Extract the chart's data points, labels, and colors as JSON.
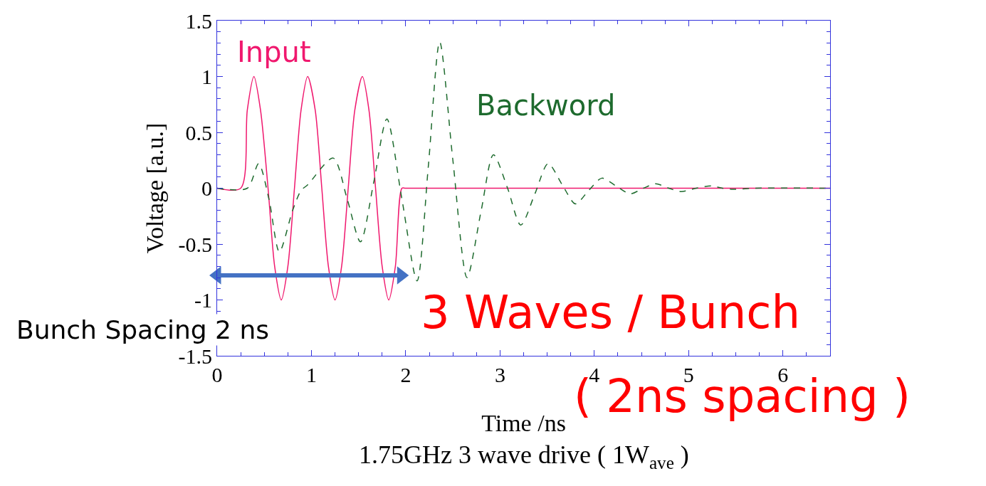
{
  "chart_data": {
    "type": "line",
    "xlabel": "Time /ns",
    "ylabel": "Voltage [a.u.]",
    "xlim": [
      0,
      6.5
    ],
    "ylim": [
      -1.5,
      1.5
    ],
    "xticks": [
      0,
      1,
      2,
      3,
      4,
      5,
      6
    ],
    "yticks": [
      -1.5,
      -1,
      -0.5,
      0,
      0.5,
      1,
      1.5
    ],
    "legend": false,
    "marker": "none",
    "series": [
      {
        "name": "Input",
        "color": "#f0186e",
        "line_style": "solid",
        "x": [
          0,
          0.25,
          0.32,
          0.39,
          0.46,
          0.54,
          0.61,
          0.68,
          0.75,
          0.82,
          0.89,
          0.96,
          1.04,
          1.11,
          1.18,
          1.25,
          1.32,
          1.39,
          1.46,
          1.54,
          1.61,
          1.68,
          1.75,
          1.82,
          1.89,
          1.96,
          2.0,
          6.5
        ],
        "values": [
          0,
          0,
          0.7,
          1,
          0.7,
          0,
          -0.7,
          -1,
          -0.7,
          0,
          0.7,
          1,
          0.7,
          0,
          -0.7,
          -1,
          -0.7,
          0,
          0.7,
          1,
          0.7,
          0,
          -0.7,
          -1,
          -0.7,
          0,
          0,
          0
        ]
      },
      {
        "name": "Backword",
        "color": "#1e6b2e",
        "line_style": "dashed",
        "x": [
          0,
          0.32,
          0.44,
          0.55,
          0.66,
          0.8,
          0.89,
          0.96,
          1.23,
          1.38,
          1.52,
          1.66,
          1.8,
          1.96,
          2.12,
          2.24,
          2.36,
          2.5,
          2.65,
          2.8,
          2.93,
          3.08,
          3.22,
          3.37,
          3.51,
          3.66,
          3.8,
          3.94,
          4.08,
          4.23,
          4.38,
          4.52,
          4.65,
          4.79,
          4.92,
          5.08,
          5.24,
          5.36,
          5.47,
          5.7,
          6.5
        ],
        "values": [
          0,
          0,
          0.22,
          -0.1,
          -0.57,
          -0.2,
          -0.02,
          0.03,
          0.27,
          -0.1,
          -0.48,
          0.05,
          0.62,
          -0.1,
          -0.83,
          0.2,
          1.31,
          0.25,
          -0.8,
          -0.2,
          0.3,
          0,
          -0.33,
          -0.05,
          0.22,
          0.03,
          -0.14,
          -0.02,
          0.09,
          0.02,
          -0.05,
          0,
          0.04,
          0,
          -0.03,
          0,
          0.02,
          0,
          -0.01,
          0,
          0
        ]
      },
      {
        "color": "#4472c4",
        "line_style": "solid",
        "marker": "triangle",
        "x": [
          0,
          1.95
        ],
        "values": [
          -0.78,
          -0.78
        ]
      }
    ],
    "annotations": [
      "Bunch Spacing 2 ns",
      "3 Waves / Bunch",
      "( 2ns spacing )",
      "1.75GHz 3 wave drive ( 1W$_{ave}$ )"
    ]
  }
}
